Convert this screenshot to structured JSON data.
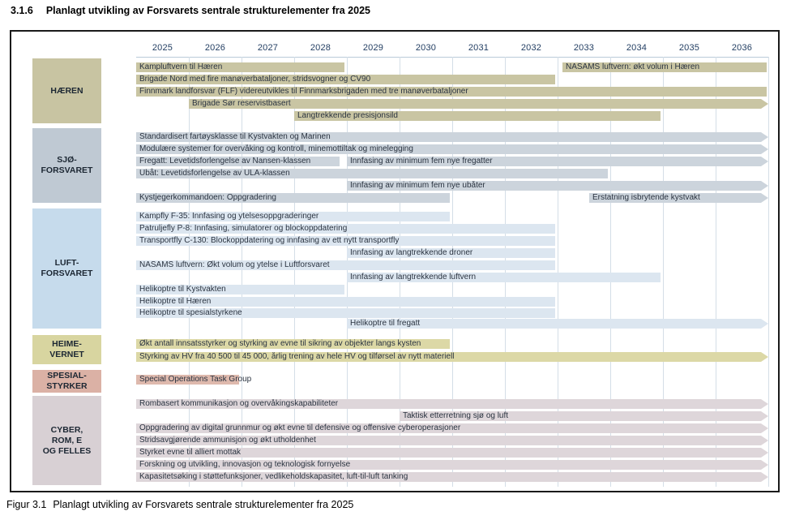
{
  "page": {
    "heading_number": "3.1.6",
    "heading_text": "Planlagt utvikling av Forsvarets sentrale strukturelementer fra 2025",
    "caption_label": "Figur 3.1",
    "caption_text": "Planlagt utvikling av Forsvarets sentrale strukturelementer fra 2025"
  },
  "chart_data": {
    "type": "gantt",
    "title": "Planlagt utvikling av Forsvarets sentrale strukturelementer fra 2025",
    "grid": true,
    "x_axis": {
      "tick_labels": [
        "2025",
        "2026",
        "2027",
        "2028",
        "2029",
        "2030",
        "2031",
        "2032",
        "2033",
        "2034",
        "2035",
        "2036"
      ],
      "start_year": 2025,
      "end_year": 2036
    },
    "colors": {
      "gridline": "#d4dee7",
      "axis_line": "#b9cbd9",
      "bar_text": "#2a3340",
      "year_text": "#1e3a5f",
      "frame_border": "#1a1a1a"
    },
    "sections": [
      {
        "key": "haeren",
        "label_lines": [
          "HÆREN"
        ],
        "box_color": "#c8c4a2",
        "bar_color": "#c9c5a3",
        "rows": [
          {
            "bars": [
              {
                "label": "Kampluftvern til Hæren",
                "start": 2025,
                "end": 2029,
                "arrow": false
              },
              {
                "label": "NASAMS luftvern: økt volum i Hæren",
                "start": 2033.1,
                "end": 2037,
                "arrow": false
              }
            ]
          },
          {
            "bars": [
              {
                "label": "Brigade Nord med fire manøverbataljoner, stridsvogner og CV90",
                "start": 2025,
                "end": 2033,
                "arrow": false
              }
            ]
          },
          {
            "bars": [
              {
                "label": "Finnmark landforsvar (FLF) videreutvikles til Finnmarksbrigaden med tre manøverbataljoner",
                "start": 2025,
                "end": 2037,
                "arrow": false
              }
            ]
          },
          {
            "bars": [
              {
                "label": "Brigade Sør reservistbasert",
                "start": 2026,
                "end": 2037,
                "arrow": true
              }
            ]
          },
          {
            "bars": [
              {
                "label": "Langtrekkende presisjonsild",
                "start": 2028,
                "end": 2035,
                "arrow": false
              }
            ]
          }
        ]
      },
      {
        "key": "sjoforsvaret",
        "label_lines": [
          "SJØ-",
          "FORSVARET"
        ],
        "box_color": "#bfc9d3",
        "bar_color": "#ccd4dc",
        "rows": [
          {
            "bars": [
              {
                "label": "Standardisert fartøysklasse til Kystvakten og Marinen",
                "start": 2025,
                "end": 2037,
                "arrow": true
              }
            ]
          },
          {
            "bars": [
              {
                "label": "Modulære systemer for overvåking og kontroll, minemottiltak og minelegging",
                "start": 2025,
                "end": 2037,
                "arrow": true
              }
            ]
          },
          {
            "bars": [
              {
                "label": "Fregatt: Levetidsforlengelse av Nansen-klassen",
                "start": 2025,
                "end": 2028.9,
                "arrow": false
              },
              {
                "label": "Innfasing av minimum fem nye fregatter",
                "start": 2029,
                "end": 2037,
                "arrow": true
              }
            ]
          },
          {
            "bars": [
              {
                "label": "Ubåt: Levetidsforlengelse av ULA-klassen",
                "start": 2025,
                "end": 2034,
                "arrow": false
              }
            ]
          },
          {
            "bars": [
              {
                "label": "Innfasing av minimum fem nye ubåter",
                "start": 2029,
                "end": 2037,
                "arrow": true
              }
            ]
          },
          {
            "bars": [
              {
                "label": "Kystjegerkommandoen: Oppgradering",
                "start": 2025,
                "end": 2031,
                "arrow": false
              },
              {
                "label": "Erstatning isbrytende kystvakt",
                "start": 2033.6,
                "end": 2037,
                "arrow": true
              }
            ]
          }
        ]
      },
      {
        "key": "luftforsvaret",
        "label_lines": [
          "LUFT-",
          "FORSVARET"
        ],
        "box_color": "#c6dbec",
        "bar_color": "#dce6f0",
        "rows": [
          {
            "bars": [
              {
                "label": "Kampfly F-35: Innfasing og ytelsesoppgraderinger",
                "start": 2025,
                "end": 2031,
                "arrow": false
              }
            ]
          },
          {
            "bars": [
              {
                "label": "Patruljefly P-8: Innfasing, simulatorer og blockoppdatering",
                "start": 2025,
                "end": 2033,
                "arrow": false
              }
            ]
          },
          {
            "bars": [
              {
                "label": "Transportfly C-130: Blockoppdatering og innfasing av ett nytt transportfly",
                "start": 2025,
                "end": 2033,
                "arrow": false
              }
            ]
          },
          {
            "bars": [
              {
                "label": "Innfasing av langtrekkende droner",
                "start": 2029,
                "end": 2033,
                "arrow": false
              }
            ]
          },
          {
            "bars": [
              {
                "label": "NASAMS luftvern: Økt volum og ytelse i Luftforsvaret",
                "start": 2025,
                "end": 2033,
                "arrow": false
              }
            ]
          },
          {
            "bars": [
              {
                "label": "Innfasing av langtrekkende luftvern",
                "start": 2029,
                "end": 2035,
                "arrow": false
              }
            ]
          },
          {
            "bars": [
              {
                "label": "Helikoptre til Kystvakten",
                "start": 2025,
                "end": 2029,
                "arrow": false
              }
            ]
          },
          {
            "bars": [
              {
                "label": "Helikoptre til Hæren",
                "start": 2025,
                "end": 2033,
                "arrow": false
              }
            ]
          },
          {
            "bars": [
              {
                "label": "Helikoptre til spesialstyrkene",
                "start": 2025,
                "end": 2033,
                "arrow": false
              }
            ]
          },
          {
            "bars": [
              {
                "label": "Helikoptre til fregatt",
                "start": 2029,
                "end": 2037,
                "arrow": true
              }
            ]
          }
        ]
      },
      {
        "key": "heimevernet",
        "label_lines": [
          "HEIME-",
          "VERNET"
        ],
        "box_color": "#d8d5a0",
        "bar_color": "#dcd8a6",
        "rows": [
          {
            "bars": [
              {
                "label": "Økt antall innsatsstyrker og styrking av evne til sikring av objekter langs kysten",
                "start": 2025,
                "end": 2031,
                "arrow": false
              }
            ]
          },
          {
            "bars": [
              {
                "label": "Styrking av HV fra 40 500 til 45 000, årlig trening av hele HV og tilførsel av nytt materiell",
                "start": 2025,
                "end": 2037,
                "arrow": true
              }
            ]
          }
        ]
      },
      {
        "key": "spesialstyrker",
        "label_lines": [
          "SPESIAL-",
          "STYRKER"
        ],
        "box_color": "#dbb1a5",
        "bar_color": "#deb9ad",
        "rows": [
          {
            "bars": [
              {
                "label": "Special Operations Task Group",
                "start": 2025,
                "end": 2027,
                "arrow": false
              }
            ]
          }
        ]
      },
      {
        "key": "cyber-rom-e-og-felles",
        "label_lines": [
          "CYBER,",
          "ROM, E",
          "OG FELLES"
        ],
        "box_color": "#d8d0d4",
        "bar_color": "#ded6da",
        "rows": [
          {
            "bars": [
              {
                "label": "Rombasert kommunikasjon og overvåkingskapabiliteter",
                "start": 2025,
                "end": 2037,
                "arrow": true
              }
            ]
          },
          {
            "bars": [
              {
                "label": "Taktisk etterretning sjø og luft",
                "start": 2030,
                "end": 2037,
                "arrow": true
              }
            ]
          },
          {
            "bars": [
              {
                "label": "Oppgradering av digital grunnmur og økt evne til defensive og offensive cyberoperasjoner",
                "start": 2025,
                "end": 2037,
                "arrow": true
              }
            ]
          },
          {
            "bars": [
              {
                "label": "Stridsavgjørende ammunisjon og økt utholdenhet",
                "start": 2025,
                "end": 2037,
                "arrow": true
              }
            ]
          },
          {
            "bars": [
              {
                "label": "Styrket evne til alliert mottak",
                "start": 2025,
                "end": 2037,
                "arrow": true
              }
            ]
          },
          {
            "bars": [
              {
                "label": "Forskning og utvikling, innovasjon og teknologisk fornyelse",
                "start": 2025,
                "end": 2037,
                "arrow": true
              }
            ]
          },
          {
            "bars": [
              {
                "label": "Kapasitetsøking i støttefunksjoner, vedlikeholdskapasitet, luft-til-luft tanking",
                "start": 2025,
                "end": 2037,
                "arrow": true
              }
            ]
          }
        ]
      }
    ]
  }
}
